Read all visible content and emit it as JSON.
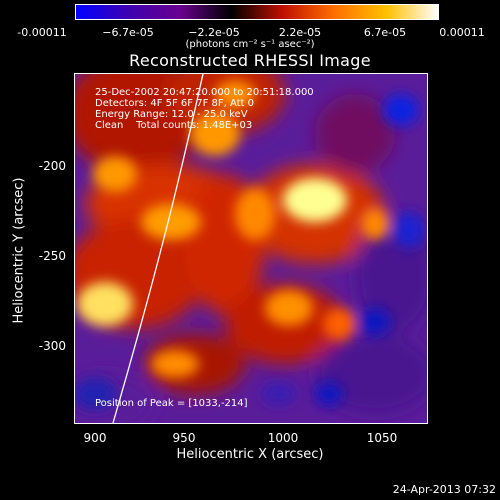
{
  "title": "Reconstructed RHESSI Image",
  "colorbar": {
    "ticks": [
      "-0.00011",
      "−6.7e-05",
      "−2.2e-05",
      "2.2e-05",
      "6.7e-05",
      "0.00011"
    ],
    "units": "(photons cm⁻² s⁻¹ asec⁻²)",
    "colors": [
      "#0000ff",
      "#3d00b0",
      "#6a0090",
      "#000000",
      "#c01000",
      "#ff7000",
      "#ffc000",
      "#ffffff"
    ]
  },
  "annotations": {
    "time": "25-Dec-2002 20:47:20.000 to 20:51:18.000",
    "detectors": "Detectors: 4F 5F 6F 7F 8F, Att 0",
    "energy": "Energy Range: 12.0 - 25.0 keV",
    "clean": "Clean    Total counts: 1.48E+03",
    "peak": "Position of Peak = [1033,-214]"
  },
  "axes": {
    "xlabel": "Heliocentric X (arcsec)",
    "ylabel": "Heliocentric Y (arcsec)",
    "xticks": [
      "900",
      "950",
      "1000",
      "1050"
    ],
    "yticks": [
      "-200",
      "-250",
      "-300"
    ]
  },
  "timestamp": "24-Apr-2013 07:32"
}
